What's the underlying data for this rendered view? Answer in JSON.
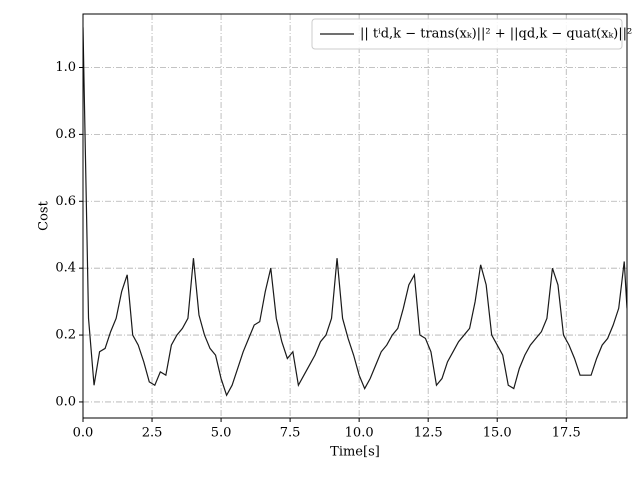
{
  "chart_data": {
    "type": "line",
    "xlabel": "Time[s]",
    "ylabel": "Cost",
    "x": [
      0,
      0.2,
      0.4,
      0.6,
      0.8,
      1.0,
      1.2,
      1.4,
      1.6,
      1.8,
      2.0,
      2.2,
      2.4,
      2.6,
      2.8,
      3.0,
      3.2,
      3.4,
      3.6,
      3.8,
      4.0,
      4.2,
      4.4,
      4.6,
      4.8,
      5.0,
      5.2,
      5.4,
      5.6,
      5.8,
      6.0,
      6.2,
      6.4,
      6.6,
      6.8,
      7.0,
      7.2,
      7.4,
      7.6,
      7.8,
      8.0,
      8.2,
      8.4,
      8.6,
      8.8,
      9.0,
      9.2,
      9.4,
      9.6,
      9.8,
      10.0,
      10.2,
      10.4,
      10.6,
      10.8,
      11.0,
      11.2,
      11.4,
      11.6,
      11.8,
      12.0,
      12.2,
      12.4,
      12.6,
      12.8,
      13.0,
      13.2,
      13.4,
      13.6,
      13.8,
      14.0,
      14.2,
      14.4,
      14.6,
      14.8,
      15.0,
      15.2,
      15.4,
      15.6,
      15.8,
      16.0,
      16.2,
      16.4,
      16.6,
      16.8,
      17.0,
      17.2,
      17.4,
      17.6,
      17.8,
      18.0,
      18.2,
      18.4,
      18.6,
      18.8,
      19.0,
      19.2,
      19.4,
      19.6,
      19.7
    ],
    "series": [
      {
        "name": "|| tⁱd,k − trans(xₖ)||² + ||qd,k − quat(xₖ)||²",
        "color": "#1a1a1a",
        "values": [
          1.12,
          0.25,
          0.05,
          0.15,
          0.16,
          0.21,
          0.25,
          0.33,
          0.38,
          0.2,
          0.17,
          0.12,
          0.06,
          0.05,
          0.09,
          0.08,
          0.17,
          0.2,
          0.22,
          0.25,
          0.43,
          0.26,
          0.2,
          0.16,
          0.14,
          0.07,
          0.02,
          0.05,
          0.1,
          0.15,
          0.19,
          0.23,
          0.24,
          0.33,
          0.4,
          0.25,
          0.18,
          0.13,
          0.15,
          0.05,
          0.08,
          0.11,
          0.14,
          0.18,
          0.2,
          0.25,
          0.43,
          0.25,
          0.19,
          0.14,
          0.08,
          0.04,
          0.07,
          0.11,
          0.15,
          0.17,
          0.2,
          0.22,
          0.28,
          0.35,
          0.38,
          0.2,
          0.19,
          0.15,
          0.05,
          0.07,
          0.12,
          0.15,
          0.18,
          0.2,
          0.22,
          0.3,
          0.41,
          0.35,
          0.2,
          0.17,
          0.14,
          0.05,
          0.04,
          0.1,
          0.14,
          0.17,
          0.19,
          0.21,
          0.25,
          0.4,
          0.35,
          0.2,
          0.17,
          0.13,
          0.08,
          0.08,
          0.08,
          0.13,
          0.17,
          0.19,
          0.23,
          0.28,
          0.42,
          0.28
        ]
      }
    ],
    "xlim": [
      0,
      19.7
    ],
    "xticks": [
      {
        "value": 0,
        "label": "0.0"
      },
      2.5,
      {
        "value": 5,
        "label": "5.0"
      },
      7.5,
      {
        "value": 10,
        "label": "10.0"
      },
      12.5,
      {
        "value": 15,
        "label": "15.0"
      },
      17.5
    ],
    "ylim": [
      -0.048,
      1.16
    ],
    "yticks": [
      {
        "value": 0,
        "label": "0.0"
      },
      0.2,
      0.4,
      0.6,
      0.8,
      {
        "value": 1,
        "label": "1.0"
      }
    ],
    "grid": true,
    "legend": "upper right"
  }
}
